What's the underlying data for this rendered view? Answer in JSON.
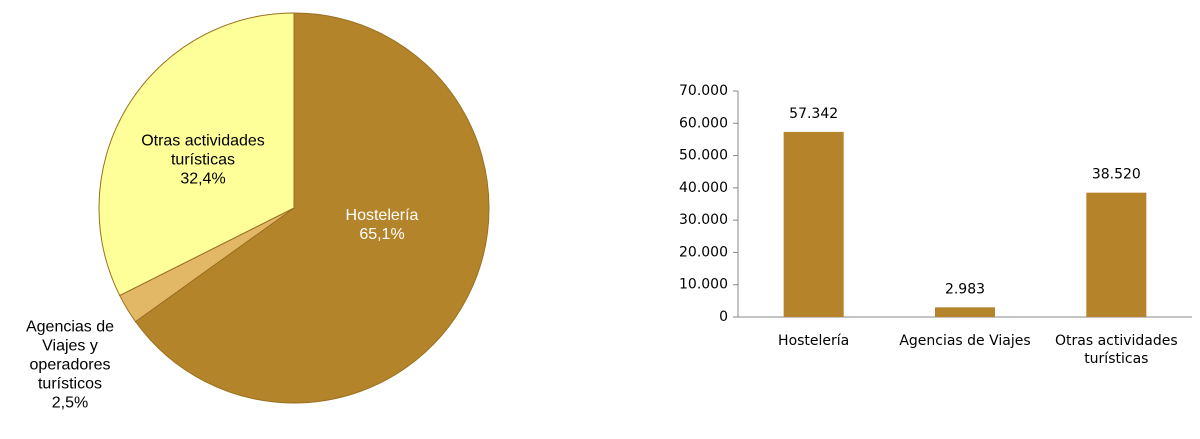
{
  "chart_data": [
    {
      "type": "pie",
      "categories": [
        "Hostelería",
        "Agencias de Viajes y operadores turísticos",
        "Otras actividades turísticas"
      ],
      "values": [
        65.1,
        2.5,
        32.4
      ],
      "value_labels": [
        "65,1%",
        "2,5%",
        "32,4%"
      ],
      "colors": [
        "#b3842a",
        "#e2b766",
        "#ffff99"
      ]
    },
    {
      "type": "bar",
      "categories": [
        "Hostelería",
        "Agencias de Viajes",
        "Otras actividades turísticas"
      ],
      "values": [
        57342,
        2983,
        38520
      ],
      "value_labels": [
        "57.342",
        "2.983",
        "38.520"
      ],
      "color": "#b5832a",
      "ylim": [
        0,
        70000
      ],
      "yticks": [
        0,
        {
          "value": 10000,
          "label": "10.000"
        },
        {
          "value": 20000,
          "label": "20.000"
        },
        {
          "value": 30000,
          "label": "30.000"
        },
        {
          "value": 40000,
          "label": "40.000"
        },
        {
          "value": 50000,
          "label": "50.000"
        },
        {
          "value": 60000,
          "label": "60.000"
        },
        {
          "value": 70000,
          "label": "70.000"
        }
      ]
    }
  ]
}
